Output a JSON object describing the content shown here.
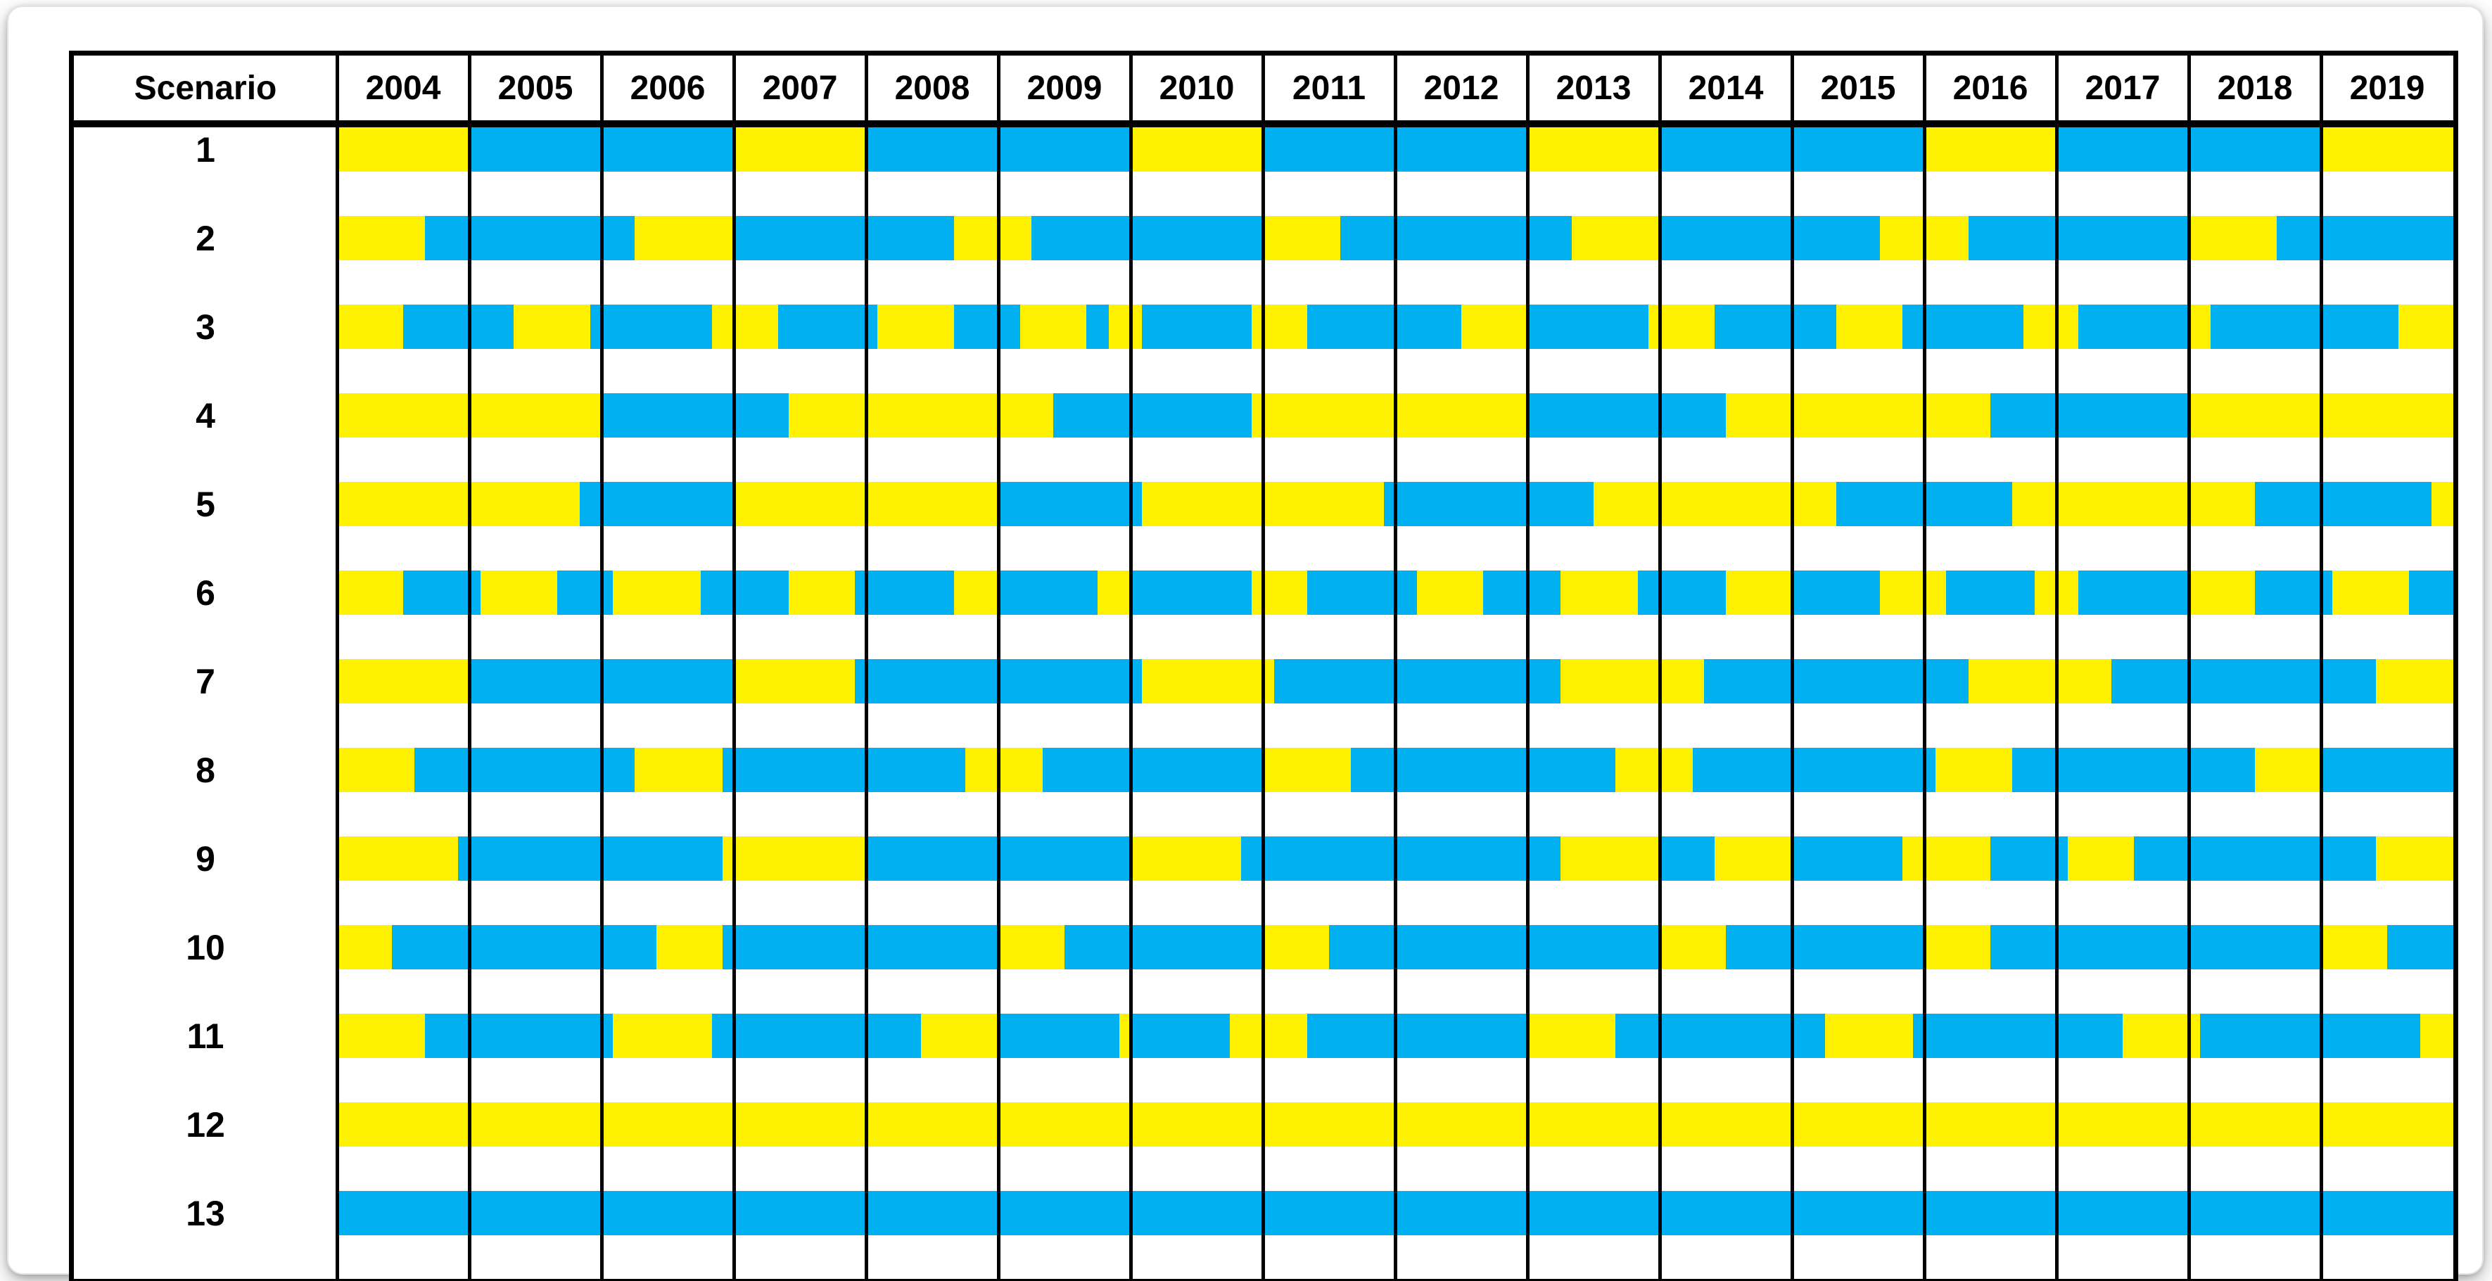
{
  "header": {
    "scenario_label": "Scenario",
    "years": [
      "2004",
      "2005",
      "2006",
      "2007",
      "2008",
      "2009",
      "2010",
      "2011",
      "2012",
      "2013",
      "2014",
      "2015",
      "2016",
      "2017",
      "2018",
      "2019"
    ]
  },
  "colors": {
    "yellow": "#FFF200",
    "blue": "#00B0F0",
    "grid": "#000000",
    "background": "#FFFFFF"
  },
  "chart_data": {
    "type": "heatmap",
    "subtype": "scenario-timeline",
    "title": "",
    "x_axis": {
      "years": [
        2004,
        2005,
        2006,
        2007,
        2008,
        2009,
        2010,
        2011,
        2012,
        2013,
        2014,
        2015,
        2016,
        2017,
        2018,
        2019
      ],
      "months_per_year": 12,
      "range_months": [
        0,
        192
      ],
      "note_month_zero": "January 2004"
    },
    "y_axis": {
      "label": "Scenario",
      "categories": [
        "1",
        "2",
        "3",
        "4",
        "5",
        "6",
        "7",
        "8",
        "9",
        "10",
        "11",
        "12",
        "13"
      ]
    },
    "cell_colors": [
      "yellow",
      "blue"
    ],
    "rows": [
      {
        "scenario": "1",
        "segments": [
          [
            0,
            12,
            "yellow"
          ],
          [
            12,
            36,
            "blue"
          ],
          [
            36,
            48,
            "yellow"
          ],
          [
            48,
            72,
            "blue"
          ],
          [
            72,
            84,
            "yellow"
          ],
          [
            84,
            108,
            "blue"
          ],
          [
            108,
            120,
            "yellow"
          ],
          [
            120,
            144,
            "blue"
          ],
          [
            144,
            156,
            "yellow"
          ],
          [
            156,
            180,
            "blue"
          ],
          [
            180,
            192,
            "yellow"
          ]
        ]
      },
      {
        "scenario": "2",
        "segments": [
          [
            0,
            8,
            "yellow"
          ],
          [
            8,
            27,
            "blue"
          ],
          [
            27,
            36,
            "yellow"
          ],
          [
            36,
            56,
            "blue"
          ],
          [
            56,
            63,
            "yellow"
          ],
          [
            63,
            84,
            "blue"
          ],
          [
            84,
            91,
            "yellow"
          ],
          [
            91,
            112,
            "blue"
          ],
          [
            112,
            120,
            "yellow"
          ],
          [
            120,
            140,
            "blue"
          ],
          [
            140,
            148,
            "yellow"
          ],
          [
            148,
            168,
            "blue"
          ],
          [
            168,
            176,
            "yellow"
          ],
          [
            176,
            192,
            "blue"
          ]
        ]
      },
      {
        "scenario": "3",
        "segments": [
          [
            0,
            6,
            "yellow"
          ],
          [
            6,
            16,
            "blue"
          ],
          [
            16,
            23,
            "yellow"
          ],
          [
            23,
            34,
            "blue"
          ],
          [
            34,
            40,
            "yellow"
          ],
          [
            40,
            49,
            "blue"
          ],
          [
            49,
            56,
            "yellow"
          ],
          [
            56,
            62,
            "blue"
          ],
          [
            62,
            68,
            "yellow"
          ],
          [
            68,
            70,
            "blue"
          ],
          [
            70,
            73,
            "yellow"
          ],
          [
            73,
            83,
            "blue"
          ],
          [
            83,
            88,
            "yellow"
          ],
          [
            88,
            102,
            "blue"
          ],
          [
            102,
            108,
            "yellow"
          ],
          [
            108,
            119,
            "blue"
          ],
          [
            119,
            125,
            "yellow"
          ],
          [
            125,
            136,
            "blue"
          ],
          [
            136,
            142,
            "yellow"
          ],
          [
            142,
            153,
            "blue"
          ],
          [
            153,
            158,
            "yellow"
          ],
          [
            158,
            168,
            "blue"
          ],
          [
            168,
            170,
            "yellow"
          ],
          [
            170,
            187,
            "blue"
          ],
          [
            187,
            192,
            "yellow"
          ]
        ]
      },
      {
        "scenario": "4",
        "segments": [
          [
            0,
            24,
            "yellow"
          ],
          [
            24,
            41,
            "blue"
          ],
          [
            41,
            65,
            "yellow"
          ],
          [
            65,
            83,
            "blue"
          ],
          [
            83,
            108,
            "yellow"
          ],
          [
            108,
            126,
            "blue"
          ],
          [
            126,
            150,
            "yellow"
          ],
          [
            150,
            168,
            "blue"
          ],
          [
            168,
            192,
            "yellow"
          ]
        ]
      },
      {
        "scenario": "5",
        "segments": [
          [
            0,
            22,
            "yellow"
          ],
          [
            22,
            36,
            "blue"
          ],
          [
            36,
            60,
            "yellow"
          ],
          [
            60,
            73,
            "blue"
          ],
          [
            73,
            95,
            "yellow"
          ],
          [
            95,
            114,
            "blue"
          ],
          [
            114,
            136,
            "yellow"
          ],
          [
            136,
            152,
            "blue"
          ],
          [
            152,
            174,
            "yellow"
          ],
          [
            174,
            190,
            "blue"
          ],
          [
            190,
            192,
            "yellow"
          ]
        ]
      },
      {
        "scenario": "6",
        "segments": [
          [
            0,
            6,
            "yellow"
          ],
          [
            6,
            13,
            "blue"
          ],
          [
            13,
            20,
            "yellow"
          ],
          [
            20,
            25,
            "blue"
          ],
          [
            25,
            33,
            "yellow"
          ],
          [
            33,
            41,
            "blue"
          ],
          [
            41,
            47,
            "yellow"
          ],
          [
            47,
            56,
            "blue"
          ],
          [
            56,
            60,
            "yellow"
          ],
          [
            60,
            69,
            "blue"
          ],
          [
            69,
            72,
            "yellow"
          ],
          [
            72,
            83,
            "blue"
          ],
          [
            83,
            88,
            "yellow"
          ],
          [
            88,
            98,
            "blue"
          ],
          [
            98,
            104,
            "yellow"
          ],
          [
            104,
            111,
            "blue"
          ],
          [
            111,
            118,
            "yellow"
          ],
          [
            118,
            126,
            "blue"
          ],
          [
            126,
            132,
            "yellow"
          ],
          [
            132,
            140,
            "blue"
          ],
          [
            140,
            146,
            "yellow"
          ],
          [
            146,
            154,
            "blue"
          ],
          [
            154,
            158,
            "yellow"
          ],
          [
            158,
            168,
            "blue"
          ],
          [
            168,
            174,
            "yellow"
          ],
          [
            174,
            181,
            "blue"
          ],
          [
            181,
            188,
            "yellow"
          ],
          [
            188,
            192,
            "blue"
          ]
        ]
      },
      {
        "scenario": "7",
        "segments": [
          [
            0,
            12,
            "yellow"
          ],
          [
            12,
            36,
            "blue"
          ],
          [
            36,
            47,
            "yellow"
          ],
          [
            47,
            73,
            "blue"
          ],
          [
            73,
            85,
            "yellow"
          ],
          [
            85,
            111,
            "blue"
          ],
          [
            111,
            124,
            "yellow"
          ],
          [
            124,
            148,
            "blue"
          ],
          [
            148,
            161,
            "yellow"
          ],
          [
            161,
            185,
            "blue"
          ],
          [
            185,
            192,
            "yellow"
          ]
        ]
      },
      {
        "scenario": "8",
        "segments": [
          [
            0,
            7,
            "yellow"
          ],
          [
            7,
            27,
            "blue"
          ],
          [
            27,
            35,
            "yellow"
          ],
          [
            35,
            57,
            "blue"
          ],
          [
            57,
            64,
            "yellow"
          ],
          [
            64,
            84,
            "blue"
          ],
          [
            84,
            92,
            "yellow"
          ],
          [
            92,
            116,
            "blue"
          ],
          [
            116,
            123,
            "yellow"
          ],
          [
            123,
            145,
            "blue"
          ],
          [
            145,
            152,
            "yellow"
          ],
          [
            152,
            174,
            "blue"
          ],
          [
            174,
            180,
            "yellow"
          ],
          [
            180,
            192,
            "blue"
          ]
        ]
      },
      {
        "scenario": "9",
        "segments": [
          [
            0,
            11,
            "yellow"
          ],
          [
            11,
            35,
            "blue"
          ],
          [
            35,
            48,
            "yellow"
          ],
          [
            48,
            72,
            "blue"
          ],
          [
            72,
            82,
            "yellow"
          ],
          [
            82,
            111,
            "blue"
          ],
          [
            111,
            120,
            "yellow"
          ],
          [
            120,
            125,
            "blue"
          ],
          [
            125,
            132,
            "yellow"
          ],
          [
            132,
            142,
            "blue"
          ],
          [
            142,
            150,
            "yellow"
          ],
          [
            150,
            157,
            "blue"
          ],
          [
            157,
            163,
            "yellow"
          ],
          [
            163,
            185,
            "blue"
          ],
          [
            185,
            192,
            "yellow"
          ]
        ]
      },
      {
        "scenario": "10",
        "segments": [
          [
            0,
            5,
            "yellow"
          ],
          [
            5,
            29,
            "blue"
          ],
          [
            29,
            35,
            "yellow"
          ],
          [
            35,
            60,
            "blue"
          ],
          [
            60,
            66,
            "yellow"
          ],
          [
            66,
            84,
            "blue"
          ],
          [
            84,
            90,
            "yellow"
          ],
          [
            90,
            120,
            "blue"
          ],
          [
            120,
            126,
            "yellow"
          ],
          [
            126,
            144,
            "blue"
          ],
          [
            144,
            150,
            "yellow"
          ],
          [
            150,
            180,
            "blue"
          ],
          [
            180,
            186,
            "yellow"
          ],
          [
            186,
            192,
            "blue"
          ]
        ]
      },
      {
        "scenario": "11",
        "segments": [
          [
            0,
            8,
            "yellow"
          ],
          [
            8,
            25,
            "blue"
          ],
          [
            25,
            34,
            "yellow"
          ],
          [
            34,
            53,
            "blue"
          ],
          [
            53,
            60,
            "yellow"
          ],
          [
            60,
            71,
            "blue"
          ],
          [
            71,
            72,
            "yellow"
          ],
          [
            72,
            81,
            "blue"
          ],
          [
            81,
            88,
            "yellow"
          ],
          [
            88,
            108,
            "blue"
          ],
          [
            108,
            116,
            "yellow"
          ],
          [
            116,
            135,
            "blue"
          ],
          [
            135,
            143,
            "yellow"
          ],
          [
            143,
            162,
            "blue"
          ],
          [
            162,
            169,
            "yellow"
          ],
          [
            169,
            189,
            "blue"
          ],
          [
            189,
            192,
            "yellow"
          ]
        ]
      },
      {
        "scenario": "12",
        "segments": [
          [
            0,
            192,
            "yellow"
          ]
        ]
      },
      {
        "scenario": "13",
        "segments": [
          [
            0,
            192,
            "blue"
          ]
        ]
      }
    ]
  }
}
